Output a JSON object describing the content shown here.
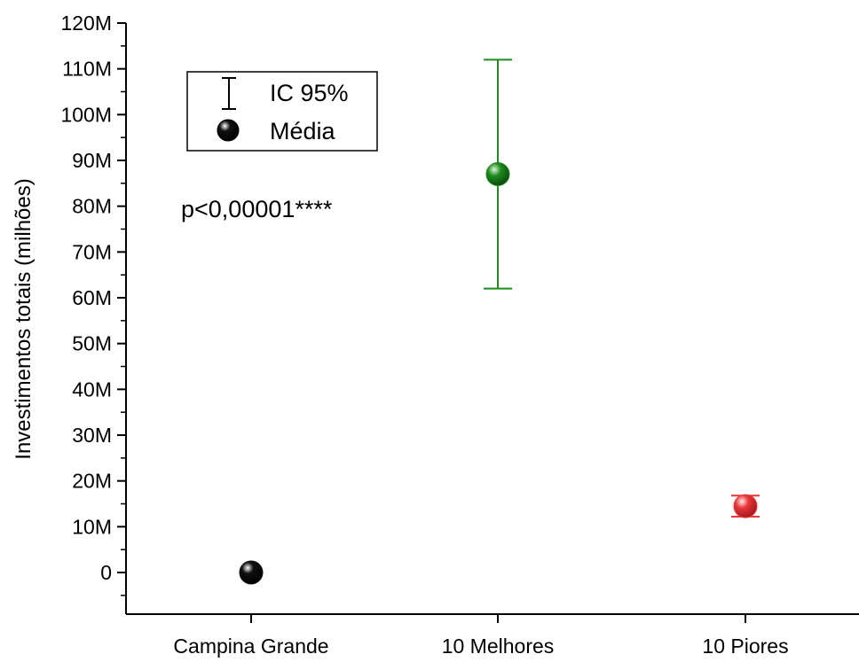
{
  "chart_data": {
    "type": "scatter",
    "title": "",
    "xlabel": "",
    "ylabel": "Investimentos totais (milhões)",
    "categories": [
      "Campina Grande",
      "10 Melhores",
      "10 Piores"
    ],
    "ylim": [
      -9,
      120
    ],
    "y_ticks": [
      0,
      10,
      20,
      30,
      40,
      50,
      60,
      70,
      80,
      90,
      100,
      110,
      120
    ],
    "y_tick_labels": [
      "0",
      "10M",
      "20M",
      "30M",
      "40M",
      "50M",
      "60M",
      "70M",
      "80M",
      "90M",
      "100M",
      "110M",
      "120M"
    ],
    "points": [
      {
        "category": "Campina Grande",
        "mean": 0,
        "ci_low": 0,
        "ci_high": 0,
        "color": "#111111"
      },
      {
        "category": "10 Melhores",
        "mean": 87,
        "ci_low": 62,
        "ci_high": 112,
        "color": "#1e8c1e"
      },
      {
        "category": "10 Piores",
        "mean": 14.5,
        "ci_low": 12.2,
        "ci_high": 16.8,
        "color": "#e8383b"
      }
    ],
    "legend": {
      "placement": "top-left",
      "entries": [
        {
          "label": "IC 95%",
          "marker": "errorbar"
        },
        {
          "label": "Média",
          "marker": "sphere"
        }
      ]
    },
    "annotation": "p<0,00001****",
    "grid": false
  }
}
